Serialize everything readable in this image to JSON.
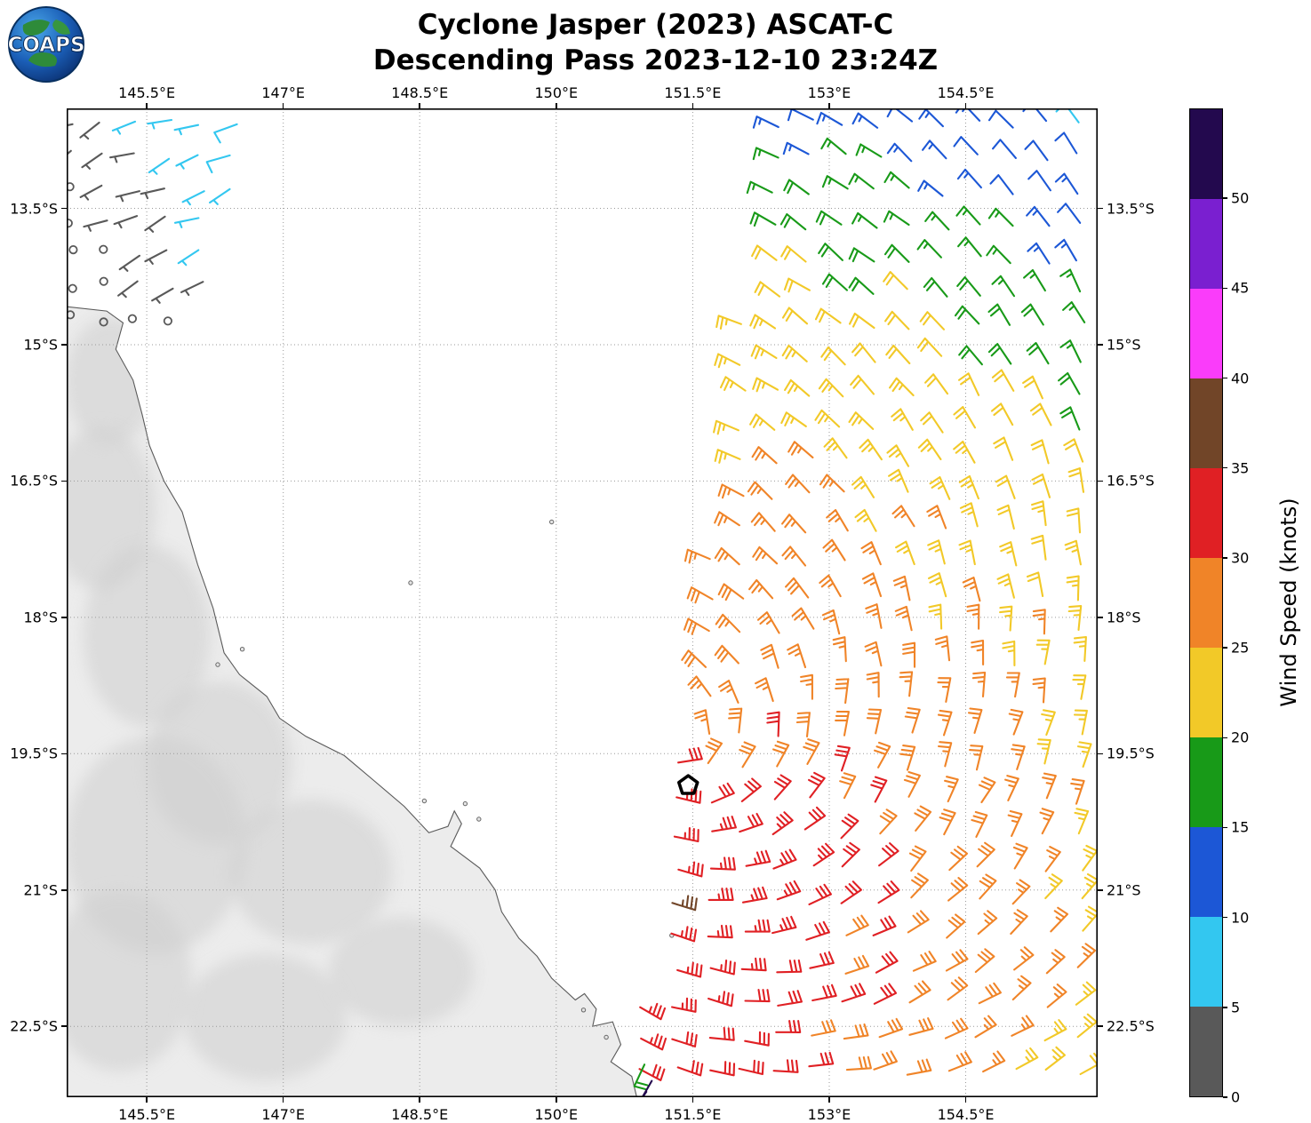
{
  "header": {
    "title_line1": "Cyclone Jasper (2023) ASCAT-C",
    "title_line2": "Descending Pass 2023-12-10 23:24Z",
    "logo_text": "COAPS"
  },
  "chart_data": {
    "type": "wind_barb_map",
    "title": "Cyclone Jasper (2023) ASCAT-C",
    "subtitle": "Descending Pass 2023-12-10 23:24Z",
    "x_axis": {
      "range": [
        144.62,
        155.95
      ],
      "tick_values": [
        145.5,
        147,
        148.5,
        150,
        151.5,
        153,
        154.5
      ],
      "tick_labels": [
        "145.5°E",
        "147°E",
        "148.5°E",
        "150°E",
        "151.5°E",
        "153°E",
        "154.5°E"
      ]
    },
    "y_axis": {
      "range": [
        12.4,
        23.28
      ],
      "tick_values": [
        13.5,
        15,
        16.5,
        18,
        19.5,
        21,
        22.5
      ],
      "tick_labels": [
        "13.5°S",
        "15°S",
        "16.5°S",
        "18°S",
        "19.5°S",
        "21°S",
        "22.5°S"
      ]
    },
    "colorbar": {
      "label": "Wind Speed (knots)",
      "tick_labels": [
        "0",
        "5",
        "10",
        "15",
        "20",
        "25",
        "30",
        "35",
        "40",
        "45",
        "50"
      ],
      "bin_edges": [
        0,
        5,
        10,
        15,
        20,
        25,
        30,
        35,
        40,
        45,
        50,
        55
      ],
      "colors": [
        "#595959",
        "#33C7F0",
        "#1C57D6",
        "#189A18",
        "#F2C928",
        "#F08428",
        "#E02024",
        "#714528",
        "#FA3CFA",
        "#7A1FD0",
        "#23094E"
      ]
    },
    "wind_field": {
      "units": "knots",
      "barb_full_kt": 10,
      "barb_half_kt": 5,
      "center": [
        151.3,
        19.5
      ],
      "profile_radius_deg": [
        0,
        0.8,
        1.8,
        2.8,
        4,
        5,
        6,
        7,
        8,
        9.5,
        12
      ],
      "profile_speed_kt": [
        29,
        31.5,
        32,
        30,
        27.5,
        25,
        21,
        16,
        12,
        8.5,
        6
      ],
      "asym_amplitude": 0.13,
      "asym_direction_deg": 215,
      "inflow_deg": 18,
      "grid_spacing_deg": 0.372,
      "swath_left_edge": [
        [
          12.4,
          152.35
        ],
        [
          14,
          152.1
        ],
        [
          16,
          151.9
        ],
        [
          17,
          151.72
        ],
        [
          18,
          151.55
        ],
        [
          19,
          151.38
        ],
        [
          20,
          151.2
        ],
        [
          21,
          151.03
        ],
        [
          22,
          150.93
        ],
        [
          23.3,
          150.85
        ]
      ],
      "swath_right_edge_lon": 155.95,
      "nw_patch": {
        "lon_range": [
          144.66,
          146.75
        ],
        "lat_range": [
          12.55,
          14.95
        ],
        "right_edge_slope": 0.32,
        "speed_base": 2.2,
        "speed_per_lon": 2.4,
        "speed_per_lat": 1.6,
        "speed_lat_ref": 13.4,
        "grid_spacing_deg": 0.36
      }
    },
    "special_barbs": [
      {
        "lon": 150.97,
        "lat": 22.92,
        "speed": 18,
        "dir_from": 205
      },
      {
        "lon": 151.05,
        "lat": 23.1,
        "speed": 52,
        "dir_from": 210
      },
      {
        "lon": 150.99,
        "lat": 23.22,
        "speed": 52,
        "dir_from": 215
      }
    ],
    "cyclone_marker": {
      "lon": 151.45,
      "lat": 19.85
    },
    "land": {
      "coast": [
        [
          144.6,
          14.58
        ],
        [
          145.06,
          14.63
        ],
        [
          145.24,
          14.76
        ],
        [
          145.16,
          15.05
        ],
        [
          145.35,
          15.39
        ],
        [
          145.45,
          15.77
        ],
        [
          145.53,
          16.11
        ],
        [
          145.69,
          16.5
        ],
        [
          145.89,
          16.84
        ],
        [
          146.06,
          17.42
        ],
        [
          146.23,
          17.9
        ],
        [
          146.35,
          18.39
        ],
        [
          146.52,
          18.63
        ],
        [
          146.82,
          18.87
        ],
        [
          146.96,
          19.11
        ],
        [
          147.25,
          19.31
        ],
        [
          147.67,
          19.52
        ],
        [
          147.99,
          19.79
        ],
        [
          148.33,
          20.08
        ],
        [
          148.6,
          20.37
        ],
        [
          148.81,
          20.3
        ],
        [
          148.88,
          20.13
        ],
        [
          148.96,
          20.27
        ],
        [
          148.84,
          20.52
        ],
        [
          149.16,
          20.76
        ],
        [
          149.33,
          21.0
        ],
        [
          149.4,
          21.24
        ],
        [
          149.59,
          21.53
        ],
        [
          149.79,
          21.73
        ],
        [
          149.95,
          21.97
        ],
        [
          150.21,
          22.21
        ],
        [
          150.31,
          22.14
        ],
        [
          150.44,
          22.31
        ],
        [
          150.4,
          22.5
        ],
        [
          150.62,
          22.45
        ],
        [
          150.71,
          22.7
        ],
        [
          150.6,
          22.89
        ],
        [
          150.83,
          23.05
        ],
        [
          150.89,
          23.3
        ],
        [
          144.6,
          23.3
        ]
      ],
      "shading": [
        [
          145.1,
          15.4,
          0.5,
          0.7
        ],
        [
          145.0,
          16.8,
          0.6,
          0.9
        ],
        [
          145.5,
          18.2,
          0.7,
          1.0
        ],
        [
          146.3,
          19.6,
          0.8,
          0.9
        ],
        [
          147.3,
          20.8,
          0.9,
          0.8
        ],
        [
          148.3,
          21.9,
          0.8,
          0.6
        ],
        [
          145.6,
          20.5,
          1.0,
          1.2
        ],
        [
          146.8,
          22.4,
          0.9,
          0.7
        ],
        [
          145.2,
          22.0,
          0.8,
          1.0
        ],
        [
          146.0,
          14.9,
          0.25,
          0.3
        ]
      ],
      "islets": [
        [
          149.0,
          20.05
        ],
        [
          149.15,
          20.22
        ],
        [
          148.55,
          20.02
        ],
        [
          146.55,
          18.35
        ],
        [
          146.28,
          18.52
        ],
        [
          149.95,
          16.95
        ],
        [
          148.4,
          17.62
        ],
        [
          150.3,
          22.32
        ],
        [
          150.55,
          22.62
        ],
        [
          151.27,
          21.5
        ]
      ]
    }
  }
}
